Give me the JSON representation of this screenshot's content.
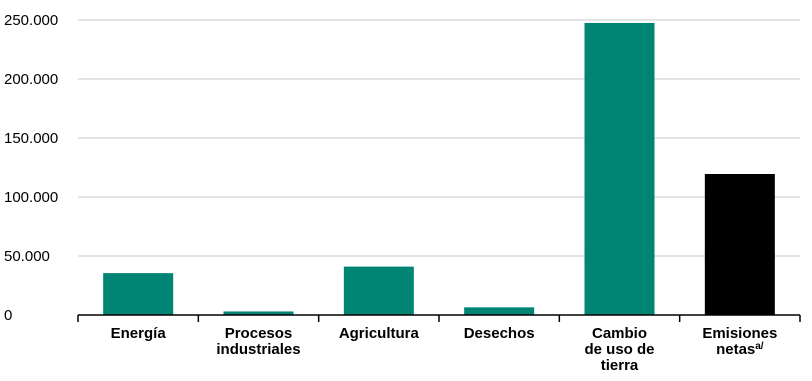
{
  "chart_data": {
    "type": "bar",
    "title": "",
    "xlabel": "",
    "ylabel": "",
    "categories": [
      "Energía",
      "Procesos industriales",
      "Agricultura",
      "Desechos",
      "Cambio de uso de tierra",
      "Emisiones netas"
    ],
    "category_lines": [
      [
        "Energía"
      ],
      [
        "Procesos",
        "industriales"
      ],
      [
        "Agricultura"
      ],
      [
        "Desechos"
      ],
      [
        "Cambio",
        "de uso de",
        "tierra"
      ],
      [
        "Emisiones",
        "netas"
      ]
    ],
    "category_superscripts": [
      "",
      "",
      "",
      "",
      "",
      "a/"
    ],
    "values": [
      35500,
      3000,
      41000,
      6500,
      247500,
      119500
    ],
    "bar_colors": [
      "#008575",
      "#008575",
      "#008575",
      "#008575",
      "#008575",
      "#000000"
    ],
    "ylim": [
      0,
      250000
    ],
    "yticks": [
      0,
      50000,
      100000,
      150000,
      200000,
      250000
    ],
    "ytick_labels": [
      "0",
      "50.000",
      "100.000",
      "150.000",
      "200.000",
      "250.000"
    ],
    "grid": true,
    "grid_color": "#c8c8c8",
    "legend": "none"
  }
}
